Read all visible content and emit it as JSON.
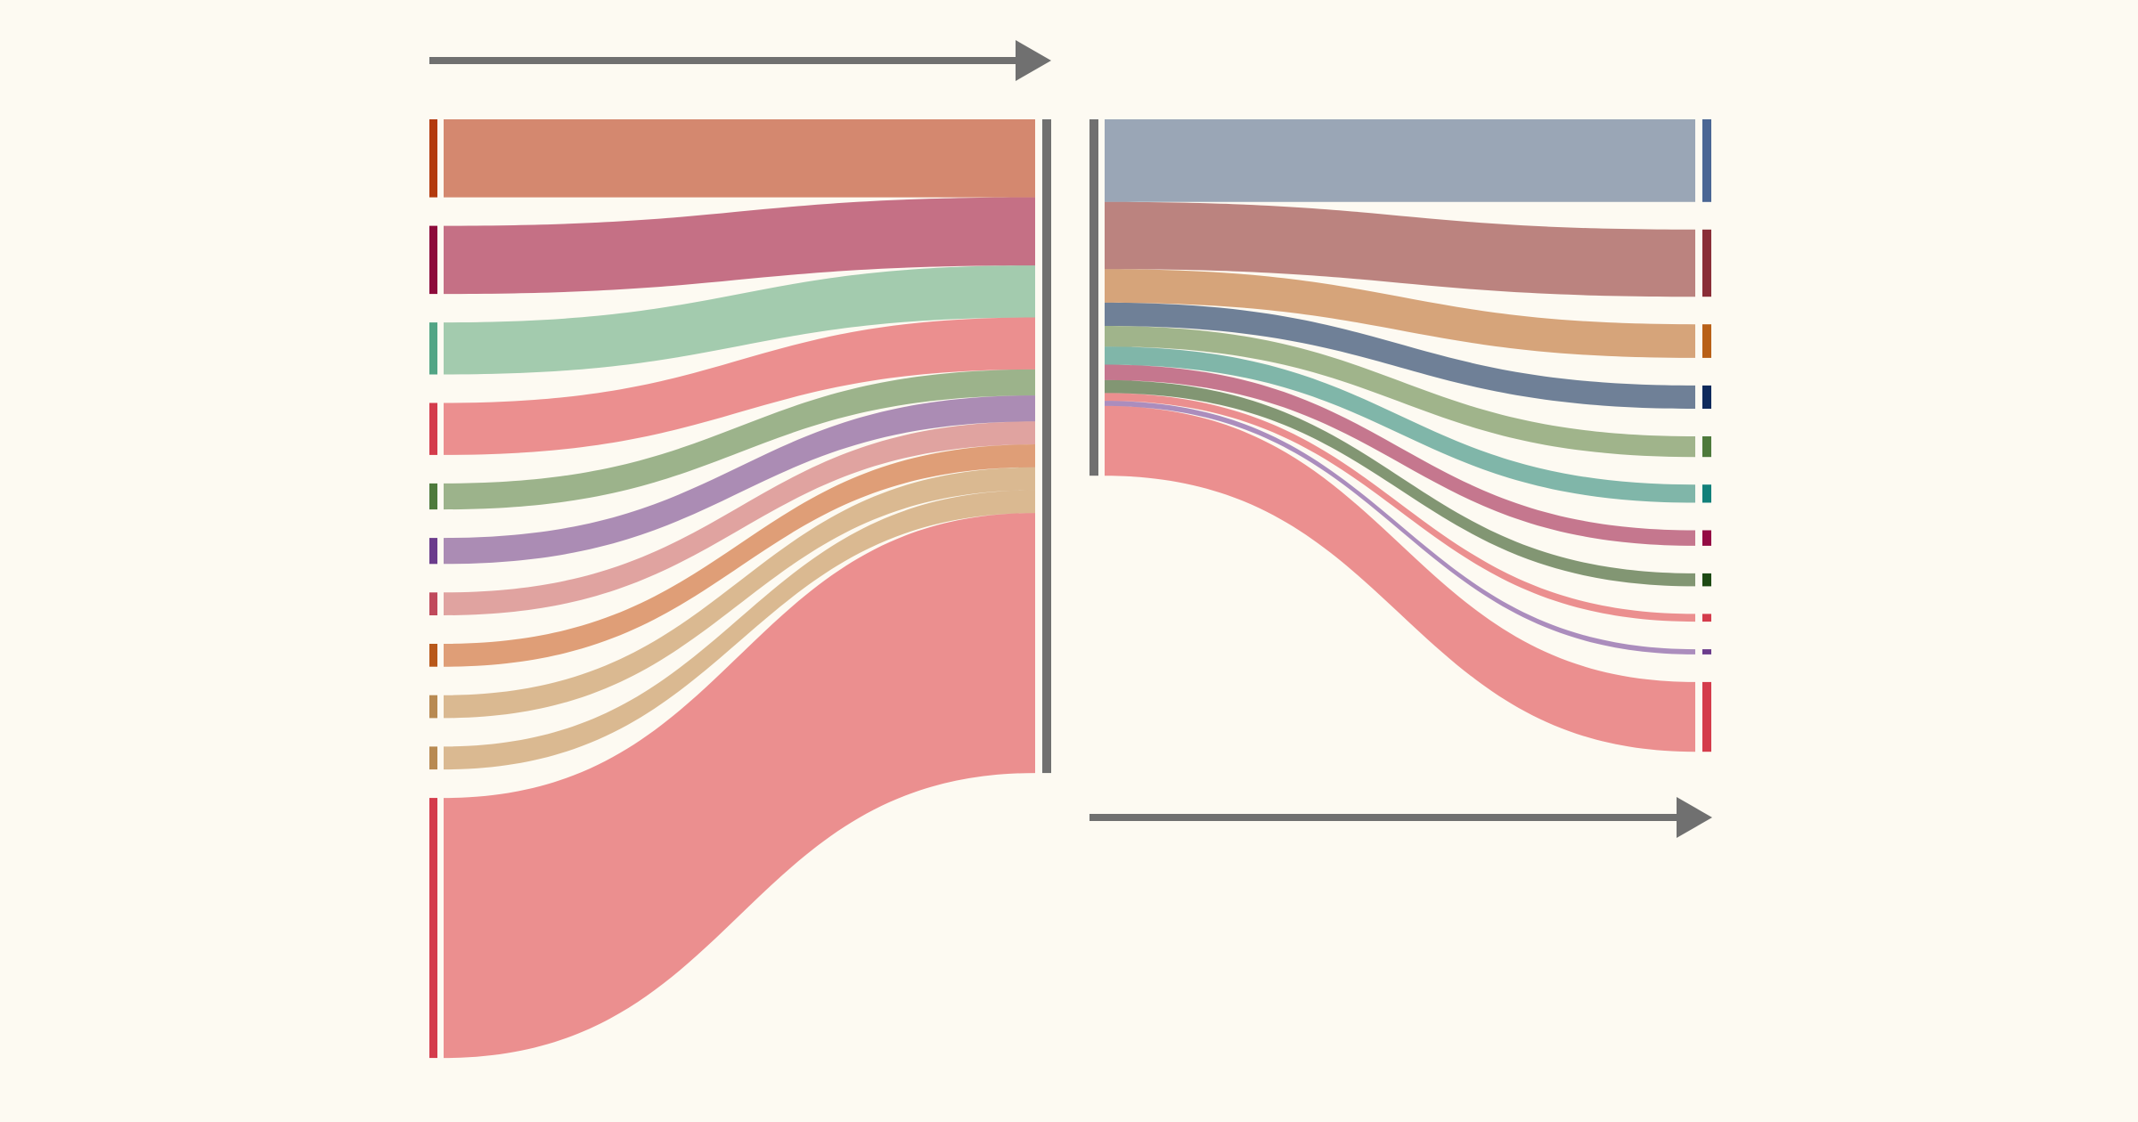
{
  "chart_data": {
    "type": "sankey",
    "title": "",
    "background": "#fdfaf2",
    "arrow_color": "#707070",
    "aggregate_color": "#707070",
    "left_stage": {
      "sources": [
        {
          "id": "s1",
          "value": 30,
          "color": "#b33a0e",
          "flow_color": "#d4856e"
        },
        {
          "id": "s2",
          "value": 26.2,
          "color": "#8d0b3b",
          "flow_color": "#c46a86"
        },
        {
          "id": "s3",
          "value": 20,
          "color": "#52a585",
          "flow_color": "#9fccb4"
        },
        {
          "id": "s4",
          "value": 20,
          "color": "#d43c4c",
          "flow_color": "#ec8c91"
        },
        {
          "id": "s5",
          "value": 10,
          "color": "#4e7a3c",
          "flow_color": "#98b38c"
        },
        {
          "id": "s6",
          "value": 10,
          "color": "#6b3c8c",
          "flow_color": "#a989ba"
        },
        {
          "id": "s7",
          "value": 8.8,
          "color": "#c04a5c",
          "flow_color": "#e0a1a4"
        },
        {
          "id": "s8",
          "value": 8.8,
          "color": "#b8581a",
          "flow_color": "#df9c76"
        },
        {
          "id": "s9",
          "value": 8.8,
          "color": "#b88a52",
          "flow_color": "#dab994"
        },
        {
          "id": "s10",
          "value": 8.8,
          "color": "#b88a52",
          "flow_color": "#dab994"
        },
        {
          "id": "s11",
          "value": 100,
          "color": "#d43c4c",
          "flow_color": "#ec8c91"
        }
      ]
    },
    "right_stage": {
      "targets": [
        {
          "id": "t1",
          "value": 32,
          "color": "#4a6694",
          "flow_color": "#96a4bd"
        },
        {
          "id": "t2",
          "value": 26,
          "color": "#8a2e38",
          "flow_color": "#b98080"
        },
        {
          "id": "t3",
          "value": 13,
          "color": "#b86018",
          "flow_color": "#d6a27a"
        },
        {
          "id": "t4",
          "value": 9,
          "color": "#0f2a5c",
          "flow_color": "#687c9a"
        },
        {
          "id": "t5",
          "value": 8,
          "color": "#4e7a3c",
          "flow_color": "#9cb48c"
        },
        {
          "id": "t6",
          "value": 7,
          "color": "#12807a",
          "flow_color": "#7ab6ae"
        },
        {
          "id": "t7",
          "value": 6,
          "color": "#940c44",
          "flow_color": "#c47290"
        },
        {
          "id": "t8",
          "value": 5,
          "color": "#1e4a14",
          "flow_color": "#7c9472"
        },
        {
          "id": "t9",
          "value": 3,
          "color": "#d43c4c",
          "flow_color": "#ec8c91"
        },
        {
          "id": "t10",
          "value": 2,
          "color": "#6b3c8c",
          "flow_color": "#a98ac4"
        },
        {
          "id": "t11",
          "value": 27,
          "color": "#d43c4c",
          "flow_color": "#ec8c91"
        }
      ]
    }
  }
}
